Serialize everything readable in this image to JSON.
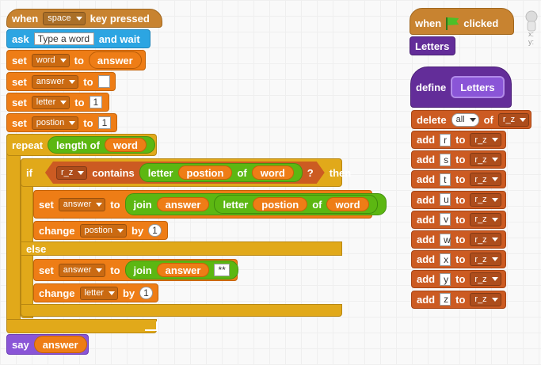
{
  "script_main": {
    "hat": {
      "when": "when",
      "key": "space",
      "pressed": "key  pressed"
    },
    "ask": {
      "label": "ask",
      "value": "Type a word",
      "wait": "and  wait"
    },
    "set_word": {
      "label": "set",
      "var": "word",
      "to": "to",
      "reporter": "answer"
    },
    "set_answer": {
      "label": "set",
      "var": "answer",
      "to": "to",
      "value": ""
    },
    "set_letter": {
      "label": "set",
      "var": "letter",
      "to": "to",
      "value": "1"
    },
    "set_postion": {
      "label": "set",
      "var": "postion",
      "to": "to",
      "value": "1"
    },
    "repeat": {
      "label": "repeat",
      "length": "length  of",
      "word": "word"
    },
    "if": {
      "label": "if",
      "list": "r_z",
      "contains": "contains",
      "letter": "letter",
      "postion": "postion",
      "of": "of",
      "word": "word",
      "q": "?",
      "then": "then"
    },
    "set_join1": {
      "label": "set",
      "var": "answer",
      "to": "to",
      "join": "join",
      "answer": "answer",
      "letter": "letter",
      "postion": "postion",
      "of": "of",
      "word": "word"
    },
    "change1": {
      "label": "change",
      "var": "postion",
      "by": "by",
      "value": "1"
    },
    "else": "else",
    "set_join2": {
      "label": "set",
      "var": "answer",
      "to": "to",
      "join": "join",
      "answer": "answer",
      "value": "**"
    },
    "change2": {
      "label": "change",
      "var": "letter",
      "by": "by",
      "value": "1"
    },
    "say": {
      "label": "say",
      "answer": "answer"
    }
  },
  "script_flag": {
    "when": "when",
    "clicked": "clicked",
    "call": "Letters"
  },
  "script_define": {
    "define": "define",
    "name": "Letters",
    "delete": {
      "label": "delete",
      "opt": "all",
      "of": "of",
      "list": "r_z"
    },
    "adds": [
      {
        "label": "add",
        "value": "r",
        "to": "to",
        "list": "r_z"
      },
      {
        "label": "add",
        "value": "s",
        "to": "to",
        "list": "r_z"
      },
      {
        "label": "add",
        "value": "t",
        "to": "to",
        "list": "r_z"
      },
      {
        "label": "add",
        "value": "u",
        "to": "to",
        "list": "r_z"
      },
      {
        "label": "add",
        "value": "v",
        "to": "to",
        "list": "r_z"
      },
      {
        "label": "add",
        "value": "w",
        "to": "to",
        "list": "r_z"
      },
      {
        "label": "add",
        "value": "x",
        "to": "to",
        "list": "r_z"
      },
      {
        "label": "add",
        "value": "y",
        "to": "to",
        "list": "r_z"
      },
      {
        "label": "add",
        "value": "z",
        "to": "to",
        "list": "r_z"
      }
    ]
  },
  "sprite_info": {
    "x": "x:",
    "y": "y:"
  }
}
